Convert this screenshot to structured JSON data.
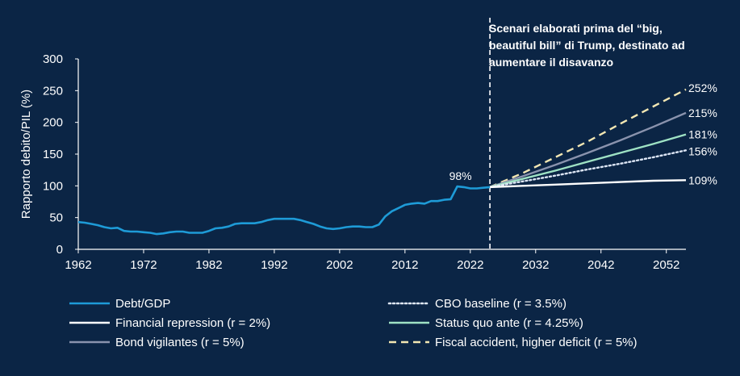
{
  "chart_data": {
    "type": "line",
    "ylabel": "Rapporto debito/PIL (%)",
    "xlim": [
      1962,
      2055
    ],
    "ylim": [
      0,
      300
    ],
    "yticks": [
      0,
      50,
      100,
      150,
      200,
      250,
      300
    ],
    "xticks": [
      1962,
      1972,
      1982,
      1992,
      2002,
      2012,
      2022,
      2032,
      2042,
      2052
    ],
    "grid": false,
    "divider_year": 2025,
    "annotation": [
      "Scenari elaborati prima del “big,",
      "beautiful bill” di Trump, destinato ad",
      "aumentare il disavanzo"
    ],
    "history_label": "98%",
    "series": [
      {
        "name": "Debt/GDP",
        "key": "debt",
        "color": "#1e9bd7",
        "style": "solid",
        "x": [
          1962,
          1963,
          1964,
          1965,
          1966,
          1967,
          1968,
          1969,
          1970,
          1971,
          1972,
          1973,
          1974,
          1975,
          1976,
          1977,
          1978,
          1979,
          1980,
          1981,
          1982,
          1983,
          1984,
          1985,
          1986,
          1987,
          1988,
          1989,
          1990,
          1991,
          1992,
          1993,
          1994,
          1995,
          1996,
          1997,
          1998,
          1999,
          2000,
          2001,
          2002,
          2003,
          2004,
          2005,
          2006,
          2007,
          2008,
          2009,
          2010,
          2011,
          2012,
          2013,
          2014,
          2015,
          2016,
          2017,
          2018,
          2019,
          2020,
          2021,
          2022,
          2023,
          2024,
          2025
        ],
        "y": [
          43,
          42,
          40,
          38,
          35,
          33,
          34,
          29,
          28,
          28,
          27,
          26,
          24,
          25,
          27,
          28,
          28,
          26,
          26,
          26,
          29,
          33,
          34,
          36,
          40,
          41,
          41,
          41,
          43,
          46,
          48,
          48,
          48,
          48,
          46,
          43,
          40,
          36,
          33,
          32,
          33,
          35,
          36,
          36,
          35,
          35,
          39,
          52,
          60,
          65,
          70,
          72,
          73,
          72,
          76,
          76,
          78,
          79,
          99,
          98,
          96,
          96,
          97,
          98
        ]
      },
      {
        "name": "Fiscal accident, higher deficit (r = 5%)",
        "key": "fiscal",
        "color": "#f3e7b3",
        "style": "dashed",
        "x": [
          2025,
          2030,
          2035,
          2040,
          2045,
          2050,
          2055
        ],
        "y": [
          98,
          120,
          145,
          170,
          198,
          225,
          252
        ],
        "end_label": "252%"
      },
      {
        "name": "Bond vigilantes (r = 5%)",
        "key": "vigilantes",
        "color": "#8a93ad",
        "style": "solid",
        "x": [
          2025,
          2030,
          2035,
          2040,
          2045,
          2050,
          2055
        ],
        "y": [
          98,
          115,
          133,
          152,
          172,
          193,
          215
        ],
        "end_label": "215%"
      },
      {
        "name": "Status quo ante (r = 4.25%)",
        "key": "statusquo",
        "color": "#9ee2c4",
        "style": "solid",
        "x": [
          2025,
          2030,
          2035,
          2040,
          2045,
          2050,
          2055
        ],
        "y": [
          98,
          111,
          124,
          138,
          152,
          166,
          181
        ],
        "end_label": "181%"
      },
      {
        "name": "CBO baseline (r = 3.5%)",
        "key": "cbo",
        "color": "#dde6f5",
        "style": "dotted",
        "x": [
          2025,
          2030,
          2035,
          2040,
          2045,
          2050,
          2055
        ],
        "y": [
          98,
          107,
          116,
          126,
          135,
          145,
          156
        ],
        "end_label": "156%"
      },
      {
        "name": "Financial repression (r = 2%)",
        "key": "repression",
        "color": "#ffffff",
        "style": "solid",
        "x": [
          2025,
          2030,
          2035,
          2040,
          2045,
          2050,
          2055
        ],
        "y": [
          98,
          100,
          102,
          104,
          106,
          108,
          109
        ],
        "end_label": "109%"
      }
    ]
  },
  "legend": {
    "placement": "bottom",
    "items": [
      {
        "key": "debt",
        "label": "Debt/GDP"
      },
      {
        "key": "cbo",
        "label": "CBO baseline (r = 3.5%)"
      },
      {
        "key": "repression",
        "label": "Financial repression (r = 2%)"
      },
      {
        "key": "statusquo",
        "label": "Status quo ante (r = 4.25%)"
      },
      {
        "key": "vigilantes",
        "label": "Bond vigilantes (r = 5%)"
      },
      {
        "key": "fiscal",
        "label": "Fiscal accident, higher deficit (r = 5%)"
      }
    ]
  },
  "colors": {
    "background": "#0b2545",
    "axis": "#ffffff"
  }
}
